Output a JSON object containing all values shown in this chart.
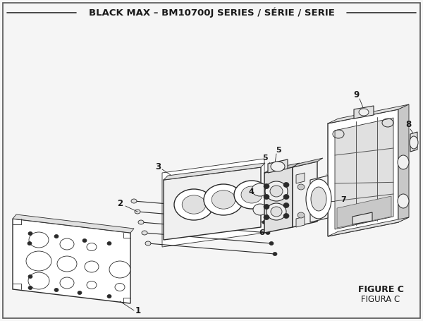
{
  "title": "BLACK MAX – BM10700J SERIES / SÉRIE / SERIE",
  "title_fontsize": 9.5,
  "title_fontweight": "bold",
  "figure_label": "FIGURE C",
  "figure_label2": "FIGURA C",
  "bg_color": "#f5f5f5",
  "line_color": "#2a2a2a",
  "text_color": "#1a1a1a",
  "border_color": "#555555"
}
